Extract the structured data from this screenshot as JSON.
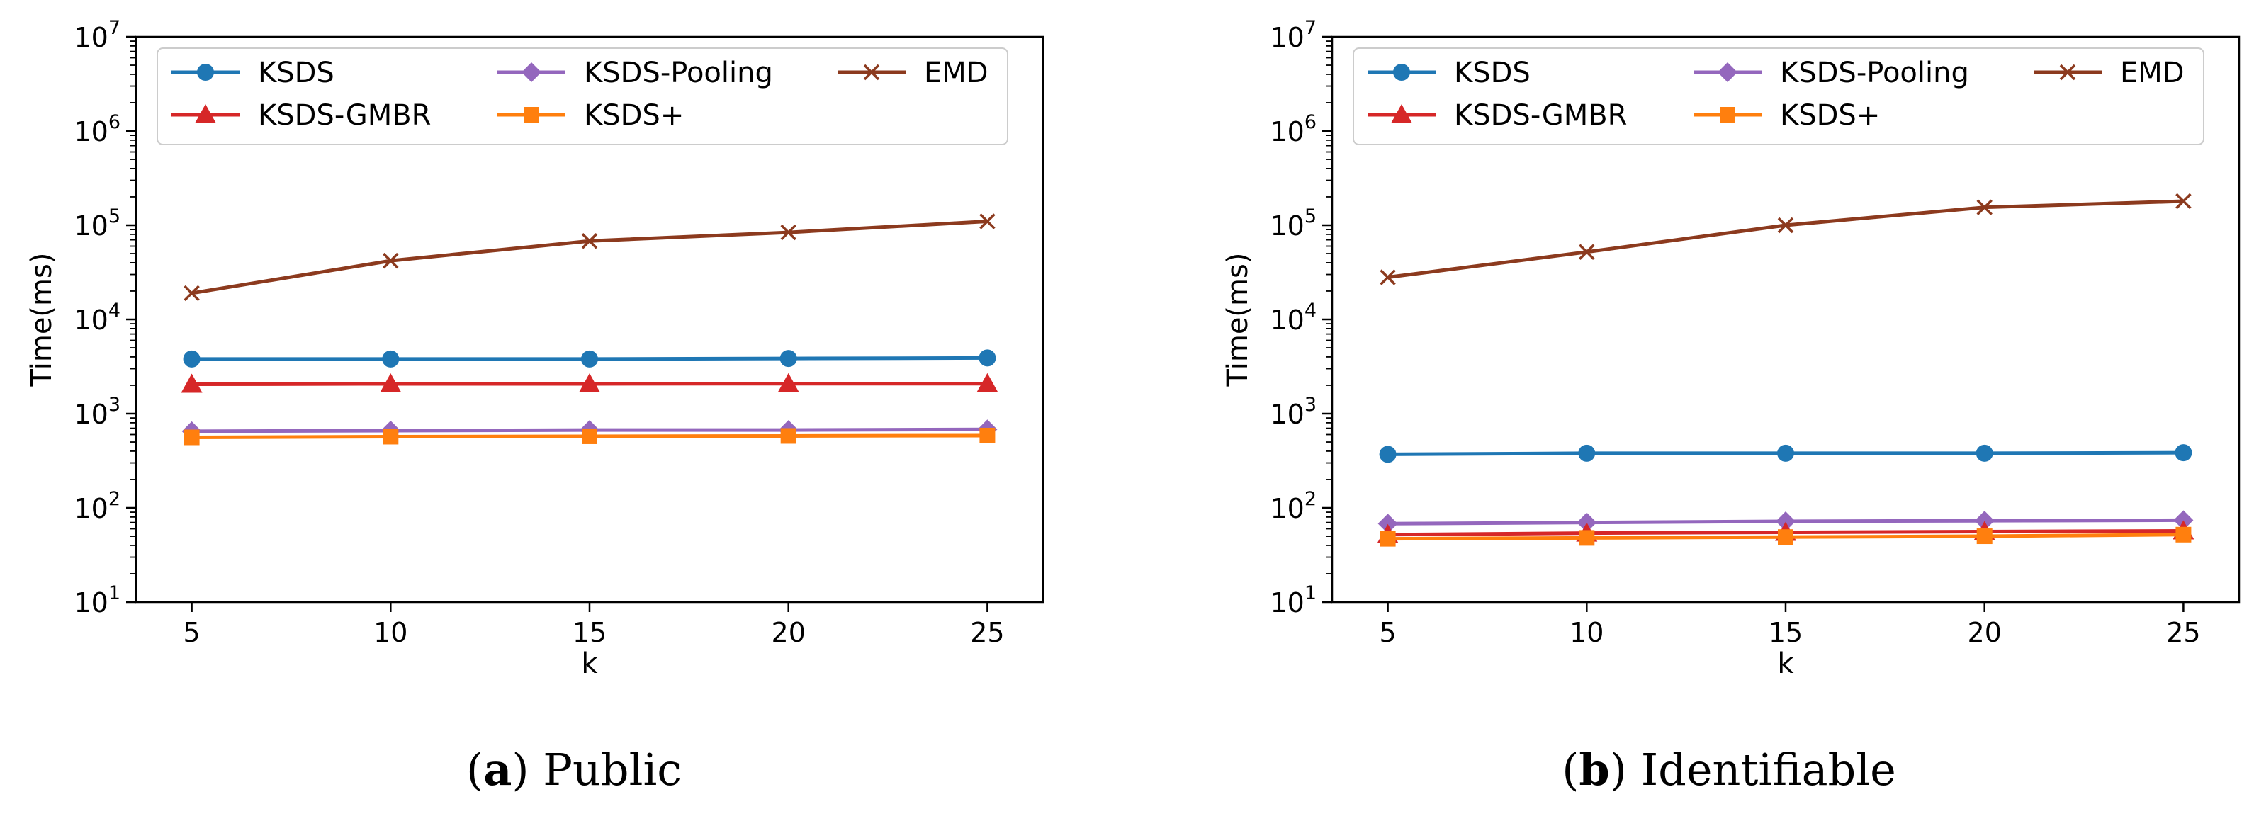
{
  "chart_data": [
    {
      "id": "a",
      "type": "line",
      "caption_label": "(a)",
      "caption_letter": "a",
      "caption_text": "Public",
      "xlabel": "k",
      "ylabel": "Time(ms)",
      "x": [
        5,
        10,
        15,
        20,
        25
      ],
      "xlim": [
        3.6,
        26.4
      ],
      "ylim_exponent": [
        1,
        7
      ],
      "y_tick_labels": [
        "10",
        "10",
        "10",
        "10",
        "10",
        "10",
        "10"
      ],
      "y_tick_exponents": [
        "1",
        "2",
        "3",
        "4",
        "5",
        "6",
        "7"
      ],
      "x_tick_labels": [
        "5",
        "10",
        "15",
        "20",
        "25"
      ],
      "legend_position": "top",
      "series": [
        {
          "name": "KSDS",
          "color": "#1f77b4",
          "marker": "circle",
          "values": [
            3800,
            3800,
            3800,
            3850,
            3900
          ]
        },
        {
          "name": "KSDS-GMBR",
          "color": "#d62728",
          "marker": "triangle",
          "values": [
            2050,
            2070,
            2070,
            2080,
            2080
          ]
        },
        {
          "name": "KSDS-Pooling",
          "color": "#9467bd",
          "marker": "diamond",
          "values": [
            650,
            660,
            670,
            670,
            680
          ]
        },
        {
          "name": "KSDS+",
          "color": "#ff7f0e",
          "marker": "square",
          "values": [
            560,
            570,
            575,
            580,
            585
          ]
        },
        {
          "name": "EMD",
          "color": "#8c3a1e",
          "marker": "x",
          "values": [
            19000,
            42000,
            68000,
            84000,
            110000
          ]
        }
      ]
    },
    {
      "id": "b",
      "type": "line",
      "caption_label": "(b)",
      "caption_letter": "b",
      "caption_text": "Identifiable",
      "xlabel": "k",
      "ylabel": "Time(ms)",
      "x": [
        5,
        10,
        15,
        20,
        25
      ],
      "xlim": [
        3.6,
        26.4
      ],
      "ylim_exponent": [
        1,
        7
      ],
      "y_tick_labels": [
        "10",
        "10",
        "10",
        "10",
        "10",
        "10",
        "10"
      ],
      "y_tick_exponents": [
        "1",
        "2",
        "3",
        "4",
        "5",
        "6",
        "7"
      ],
      "x_tick_labels": [
        "5",
        "10",
        "15",
        "20",
        "25"
      ],
      "legend_position": "top",
      "series": [
        {
          "name": "KSDS",
          "color": "#1f77b4",
          "marker": "circle",
          "values": [
            370,
            380,
            380,
            380,
            385
          ]
        },
        {
          "name": "KSDS-GMBR",
          "color": "#d62728",
          "marker": "triangle",
          "values": [
            52,
            54,
            55,
            56,
            57
          ]
        },
        {
          "name": "KSDS-Pooling",
          "color": "#9467bd",
          "marker": "diamond",
          "values": [
            68,
            70,
            72,
            73,
            74
          ]
        },
        {
          "name": "KSDS+",
          "color": "#ff7f0e",
          "marker": "square",
          "values": [
            47,
            48,
            49,
            50,
            52
          ]
        },
        {
          "name": "EMD",
          "color": "#8c3a1e",
          "marker": "x",
          "values": [
            28000,
            52000,
            100000,
            155000,
            180000
          ]
        }
      ]
    }
  ]
}
